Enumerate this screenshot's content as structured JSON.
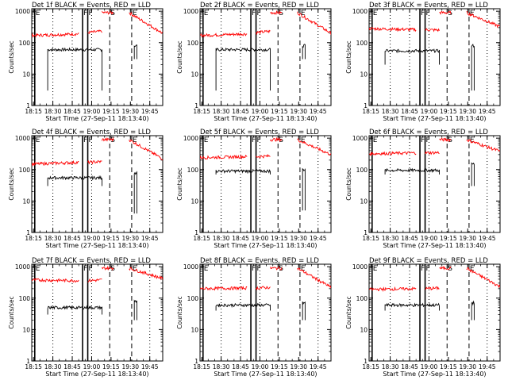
{
  "figure": {
    "xlabel": "Start Time (27-Sep-11 18:13:40)",
    "ylabel": "Counts/sec",
    "x_tick_labels": [
      "18:15",
      "18:30",
      "18:45",
      "19:00",
      "19:15",
      "19:30",
      "19:45"
    ],
    "y_tick_labels": [
      "1",
      "10",
      "100",
      "1000"
    ],
    "colors": {
      "events": "#000000",
      "lld": "#ff0000"
    }
  },
  "chart_data": [
    {
      "type": "line",
      "title": "Det 1f BLACK = Events, RED = LLD",
      "ylog": true,
      "ylim": [
        1,
        1200
      ],
      "xlim": [
        "18:13:40",
        "19:55"
      ],
      "markers": [
        {
          "label": "E",
          "time": "18:16",
          "style": "solid"
        },
        {
          "label": "F",
          "time": "18:53",
          "style": "solid"
        },
        {
          "label": "F",
          "time": "18:57",
          "style": "solid"
        },
        {
          "label": "S",
          "time": "19:14",
          "style": "dashed"
        },
        {
          "label": "E",
          "time": "19:31",
          "style": "dashed"
        }
      ],
      "dotted_times": [
        "18:30",
        "18:45",
        "19:00",
        "19:45"
      ],
      "series": [
        {
          "name": "Events",
          "color": "#000000",
          "segments": [
            {
              "start": "18:26",
              "end": "19:08",
              "level": 60,
              "drop_to": 3
            },
            {
              "start": "19:33",
              "end": "19:35",
              "level": 80,
              "drop_to": 30
            }
          ]
        },
        {
          "name": "LLD",
          "color": "#ff0000",
          "segments": [
            {
              "start": "18:13:40",
              "end": "18:50",
              "level": 170,
              "end_level": 190
            },
            {
              "start": "18:57",
              "end": "19:08",
              "level": 210,
              "end_level": 230
            },
            {
              "start": "19:08",
              "end": "19:17",
              "level": 900
            },
            {
              "start": "19:29",
              "end": "19:55",
              "level": 900,
              "end_level": 200
            }
          ]
        }
      ]
    },
    {
      "type": "line",
      "title": "Det 2f BLACK = Events, RED = LLD",
      "ylog": true,
      "ylim": [
        1,
        1200
      ],
      "xlim": [
        "18:13:40",
        "19:55"
      ],
      "markers": [
        {
          "label": "E",
          "time": "18:16",
          "style": "solid"
        },
        {
          "label": "F",
          "time": "18:53",
          "style": "solid"
        },
        {
          "label": "F",
          "time": "18:57",
          "style": "solid"
        },
        {
          "label": "S",
          "time": "19:14",
          "style": "dashed"
        },
        {
          "label": "E",
          "time": "19:31",
          "style": "dashed"
        }
      ],
      "dotted_times": [
        "18:30",
        "18:45",
        "19:00",
        "19:45"
      ],
      "series": [
        {
          "name": "Events",
          "color": "#000000",
          "segments": [
            {
              "start": "18:26",
              "end": "19:08",
              "level": 60,
              "drop_to": 3
            },
            {
              "start": "19:33",
              "end": "19:35",
              "level": 80,
              "drop_to": 30
            }
          ]
        },
        {
          "name": "LLD",
          "color": "#ff0000",
          "segments": [
            {
              "start": "18:13:40",
              "end": "18:50",
              "level": 170,
              "end_level": 190
            },
            {
              "start": "18:57",
              "end": "19:08",
              "level": 210,
              "end_level": 230
            },
            {
              "start": "19:08",
              "end": "19:17",
              "level": 900
            },
            {
              "start": "19:29",
              "end": "19:55",
              "level": 900,
              "end_level": 200
            }
          ]
        }
      ]
    },
    {
      "type": "line",
      "title": "Det 3f BLACK = Events, RED = LLD",
      "ylog": true,
      "ylim": [
        1,
        1200
      ],
      "xlim": [
        "18:13:40",
        "19:55"
      ],
      "markers": [
        {
          "label": "E",
          "time": "18:16",
          "style": "solid"
        },
        {
          "label": "F",
          "time": "18:53",
          "style": "solid"
        },
        {
          "label": "F",
          "time": "18:57",
          "style": "solid"
        },
        {
          "label": "S",
          "time": "19:14",
          "style": "dashed"
        },
        {
          "label": "E",
          "time": "19:31",
          "style": "dashed"
        }
      ],
      "dotted_times": [
        "18:30",
        "18:45",
        "19:00",
        "19:45"
      ],
      "series": [
        {
          "name": "Events",
          "color": "#000000",
          "segments": [
            {
              "start": "18:26",
              "end": "19:08",
              "level": 55,
              "drop_to": 20
            },
            {
              "start": "19:33",
              "end": "19:35",
              "level": 80,
              "drop_to": 3
            }
          ]
        },
        {
          "name": "LLD",
          "color": "#ff0000",
          "segments": [
            {
              "start": "18:13:40",
              "end": "18:50",
              "level": 280,
              "end_level": 260
            },
            {
              "start": "18:57",
              "end": "19:08",
              "level": 260,
              "end_level": 250
            },
            {
              "start": "19:08",
              "end": "19:17",
              "level": 900
            },
            {
              "start": "19:29",
              "end": "19:55",
              "level": 900,
              "end_level": 320
            }
          ]
        }
      ]
    },
    {
      "type": "line",
      "title": "Det 4f BLACK = Events, RED = LLD",
      "ylog": true,
      "ylim": [
        1,
        1200
      ],
      "xlim": [
        "18:13:40",
        "19:55"
      ],
      "markers": [
        {
          "label": "E",
          "time": "18:16",
          "style": "solid"
        },
        {
          "label": "F",
          "time": "18:53",
          "style": "solid"
        },
        {
          "label": "F",
          "time": "18:57",
          "style": "solid"
        },
        {
          "label": "S",
          "time": "19:14",
          "style": "dashed"
        },
        {
          "label": "E",
          "time": "19:31",
          "style": "dashed"
        }
      ],
      "dotted_times": [
        "18:30",
        "18:45",
        "19:00",
        "19:45"
      ],
      "series": [
        {
          "name": "Events",
          "color": "#000000",
          "segments": [
            {
              "start": "18:26",
              "end": "19:08",
              "level": 55,
              "drop_to": 30
            },
            {
              "start": "19:33",
              "end": "19:35",
              "level": 80,
              "drop_to": 4
            }
          ]
        },
        {
          "name": "LLD",
          "color": "#ff0000",
          "segments": [
            {
              "start": "18:13:40",
              "end": "18:50",
              "level": 150,
              "end_level": 170
            },
            {
              "start": "18:57",
              "end": "19:08",
              "level": 170,
              "end_level": 180
            },
            {
              "start": "19:08",
              "end": "19:17",
              "level": 900
            },
            {
              "start": "19:29",
              "end": "19:55",
              "level": 900,
              "end_level": 220
            }
          ]
        }
      ]
    },
    {
      "type": "line",
      "title": "Det 5f BLACK = Events, RED = LLD",
      "ylog": true,
      "ylim": [
        1,
        1200
      ],
      "xlim": [
        "18:13:40",
        "19:55"
      ],
      "markers": [
        {
          "label": "E",
          "time": "18:16",
          "style": "solid"
        },
        {
          "label": "F",
          "time": "18:53",
          "style": "solid"
        },
        {
          "label": "F",
          "time": "18:57",
          "style": "solid"
        },
        {
          "label": "S",
          "time": "19:14",
          "style": "dashed"
        },
        {
          "label": "E",
          "time": "19:31",
          "style": "dashed"
        }
      ],
      "dotted_times": [
        "18:30",
        "18:45",
        "19:00",
        "19:45"
      ],
      "series": [
        {
          "name": "Events",
          "color": "#000000",
          "segments": [
            {
              "start": "18:26",
              "end": "19:08",
              "level": 90,
              "drop_to": 70
            },
            {
              "start": "19:33",
              "end": "19:35",
              "level": 100,
              "drop_to": 5
            }
          ]
        },
        {
          "name": "LLD",
          "color": "#ff0000",
          "segments": [
            {
              "start": "18:13:40",
              "end": "18:50",
              "level": 240,
              "end_level": 260
            },
            {
              "start": "18:57",
              "end": "19:08",
              "level": 260,
              "end_level": 270
            },
            {
              "start": "19:08",
              "end": "19:17",
              "level": 900
            },
            {
              "start": "19:29",
              "end": "19:55",
              "level": 900,
              "end_level": 300
            }
          ]
        }
      ]
    },
    {
      "type": "line",
      "title": "Det 6f BLACK = Events, RED = LLD",
      "ylog": true,
      "ylim": [
        1,
        1200
      ],
      "xlim": [
        "18:13:40",
        "19:55"
      ],
      "markers": [
        {
          "label": "E",
          "time": "18:16",
          "style": "solid"
        },
        {
          "label": "F",
          "time": "18:53",
          "style": "solid"
        },
        {
          "label": "F",
          "time": "18:57",
          "style": "solid"
        },
        {
          "label": "S",
          "time": "19:14",
          "style": "dashed"
        },
        {
          "label": "E",
          "time": "19:31",
          "style": "dashed"
        }
      ],
      "dotted_times": [
        "18:30",
        "18:45",
        "19:00",
        "19:45"
      ],
      "series": [
        {
          "name": "Events",
          "color": "#000000",
          "segments": [
            {
              "start": "18:26",
              "end": "19:08",
              "level": 95,
              "drop_to": 70
            },
            {
              "start": "19:33",
              "end": "19:35",
              "level": 150,
              "drop_to": 30
            }
          ]
        },
        {
          "name": "LLD",
          "color": "#ff0000",
          "segments": [
            {
              "start": "18:13:40",
              "end": "18:50",
              "level": 320,
              "end_level": 340
            },
            {
              "start": "18:57",
              "end": "19:08",
              "level": 340,
              "end_level": 350
            },
            {
              "start": "19:08",
              "end": "19:17",
              "level": 900
            },
            {
              "start": "19:29",
              "end": "19:55",
              "level": 900,
              "end_level": 380
            }
          ]
        }
      ]
    },
    {
      "type": "line",
      "title": "Det 7f BLACK = Events, RED = LLD",
      "ylog": true,
      "ylim": [
        1,
        1200
      ],
      "xlim": [
        "18:13:40",
        "19:55"
      ],
      "markers": [
        {
          "label": "E",
          "time": "18:16",
          "style": "solid"
        },
        {
          "label": "F",
          "time": "18:53",
          "style": "solid"
        },
        {
          "label": "F",
          "time": "18:57",
          "style": "solid"
        },
        {
          "label": "S",
          "time": "19:14",
          "style": "dashed"
        },
        {
          "label": "E",
          "time": "19:31",
          "style": "dashed"
        }
      ],
      "dotted_times": [
        "18:30",
        "18:45",
        "19:00",
        "19:45"
      ],
      "series": [
        {
          "name": "Events",
          "color": "#000000",
          "segments": [
            {
              "start": "18:26",
              "end": "19:08",
              "level": 50,
              "drop_to": 30
            },
            {
              "start": "19:33",
              "end": "19:35",
              "level": 80,
              "drop_to": 20
            }
          ]
        },
        {
          "name": "LLD",
          "color": "#ff0000",
          "segments": [
            {
              "start": "18:13:40",
              "end": "18:50",
              "level": 380,
              "end_level": 360
            },
            {
              "start": "18:57",
              "end": "19:08",
              "level": 360,
              "end_level": 380
            },
            {
              "start": "19:08",
              "end": "19:17",
              "level": 900
            },
            {
              "start": "19:29",
              "end": "19:55",
              "level": 900,
              "end_level": 420
            }
          ]
        }
      ]
    },
    {
      "type": "line",
      "title": "Det 8f BLACK = Events, RED = LLD",
      "ylog": true,
      "ylim": [
        1,
        1200
      ],
      "xlim": [
        "18:13:40",
        "19:55"
      ],
      "markers": [
        {
          "label": "E",
          "time": "18:16",
          "style": "solid"
        },
        {
          "label": "F",
          "time": "18:53",
          "style": "solid"
        },
        {
          "label": "F",
          "time": "18:57",
          "style": "solid"
        },
        {
          "label": "S",
          "time": "19:14",
          "style": "dashed"
        },
        {
          "label": "E",
          "time": "19:31",
          "style": "dashed"
        }
      ],
      "dotted_times": [
        "18:30",
        "18:45",
        "19:00",
        "19:45"
      ],
      "series": [
        {
          "name": "Events",
          "color": "#000000",
          "segments": [
            {
              "start": "18:26",
              "end": "19:08",
              "level": 60,
              "drop_to": 40
            },
            {
              "start": "19:33",
              "end": "19:35",
              "level": 70,
              "drop_to": 20
            }
          ]
        },
        {
          "name": "LLD",
          "color": "#ff0000",
          "segments": [
            {
              "start": "18:13:40",
              "end": "18:50",
              "level": 200,
              "end_level": 210
            },
            {
              "start": "18:57",
              "end": "19:08",
              "level": 210,
              "end_level": 220
            },
            {
              "start": "19:08",
              "end": "19:17",
              "level": 900
            },
            {
              "start": "19:29",
              "end": "19:55",
              "level": 900,
              "end_level": 220
            }
          ]
        }
      ]
    },
    {
      "type": "line",
      "title": "Det 9f BLACK = Events, RED = LLD",
      "ylog": true,
      "ylim": [
        1,
        1200
      ],
      "xlim": [
        "18:13:40",
        "19:55"
      ],
      "markers": [
        {
          "label": "E",
          "time": "18:16",
          "style": "solid"
        },
        {
          "label": "F",
          "time": "18:53",
          "style": "solid"
        },
        {
          "label": "F",
          "time": "18:57",
          "style": "solid"
        },
        {
          "label": "S",
          "time": "19:14",
          "style": "dashed"
        },
        {
          "label": "E",
          "time": "19:31",
          "style": "dashed"
        }
      ],
      "dotted_times": [
        "18:30",
        "18:45",
        "19:00",
        "19:45"
      ],
      "series": [
        {
          "name": "Events",
          "color": "#000000",
          "segments": [
            {
              "start": "18:26",
              "end": "19:08",
              "level": 60,
              "drop_to": 40
            },
            {
              "start": "19:33",
              "end": "19:35",
              "level": 70,
              "drop_to": 20
            }
          ]
        },
        {
          "name": "LLD",
          "color": "#ff0000",
          "segments": [
            {
              "start": "18:13:40",
              "end": "18:50",
              "level": 190,
              "end_level": 200
            },
            {
              "start": "18:57",
              "end": "19:08",
              "level": 200,
              "end_level": 210
            },
            {
              "start": "19:08",
              "end": "19:17",
              "level": 900
            },
            {
              "start": "19:29",
              "end": "19:55",
              "level": 900,
              "end_level": 230
            }
          ]
        }
      ]
    }
  ]
}
